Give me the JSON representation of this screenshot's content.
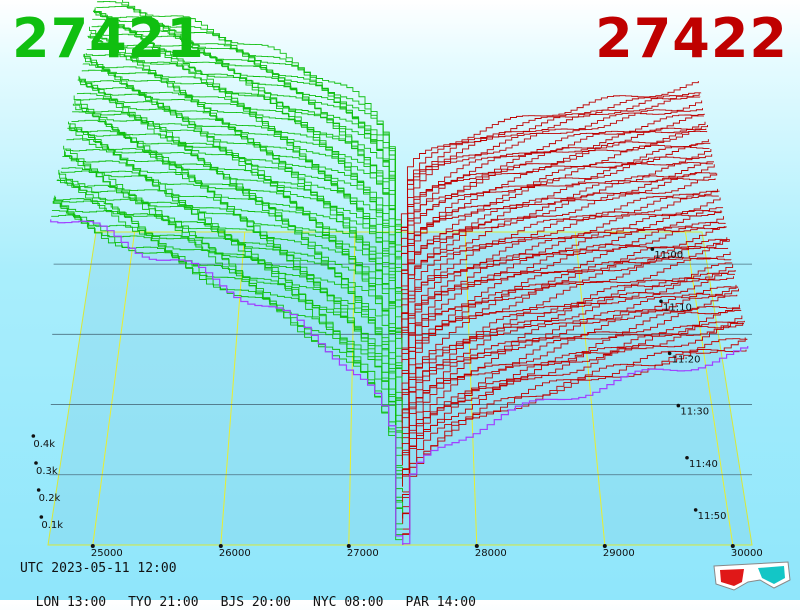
{
  "header": {
    "bid_price": "27421",
    "ask_price": "27422",
    "bid_color": "#10bf10",
    "ask_color": "#bf0000"
  },
  "footer": {
    "utc": "UTC 2023-05-11 12:00",
    "zones": [
      "LON 13:00",
      "TYO 21:00",
      "BJS 20:00",
      "NYC 08:00",
      "PAR 14:00"
    ]
  },
  "icons": {
    "glasses": "3d-glasses-icon"
  },
  "chart_data": {
    "type": "area",
    "x_axis": {
      "min": 24650,
      "max": 30150,
      "ticks": [
        25000,
        26000,
        27000,
        28000,
        29000,
        30000
      ]
    },
    "volume_axis": {
      "max": 0.45,
      "ticks": [
        0.1,
        0.2,
        0.3,
        0.4
      ],
      "tick_labels": [
        "0.1k",
        "0.2k",
        "0.3k",
        "0.4k"
      ]
    },
    "time_axis": {
      "ticks": [
        "11:00",
        "11:10",
        "11:20",
        "11:30",
        "11:40",
        "11:50"
      ]
    },
    "mid_price": 27421.5,
    "depth_snapshots": 60,
    "series": [
      {
        "side": "bid",
        "color": "#10bf10"
      },
      {
        "side": "ask",
        "color": "#bf0000"
      }
    ]
  }
}
